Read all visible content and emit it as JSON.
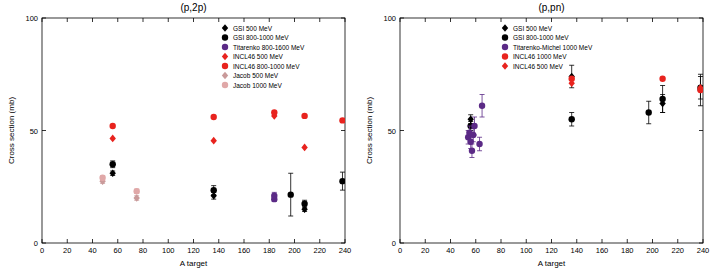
{
  "chart_data": [
    {
      "type": "scatter",
      "title": "(p,2p)",
      "x_label": "A target",
      "y_label": "Cross section (mb)",
      "xlim": [
        0,
        240
      ],
      "ylim": [
        0,
        100
      ],
      "xticks": [
        0,
        20,
        40,
        60,
        80,
        100,
        120,
        140,
        160,
        180,
        200,
        220,
        240
      ],
      "yticks": [
        0,
        50,
        100
      ],
      "grid": false,
      "legend": "upper right",
      "series": [
        {
          "name": "GSI 500 MeV",
          "color": "#000000",
          "marker": "diamond",
          "x": [
            56,
            136,
            208
          ],
          "values": [
            31,
            21,
            15
          ],
          "errors": [
            1,
            1.5,
            1
          ]
        },
        {
          "name": "GSI 800-1000 MeV",
          "color": "#000000",
          "marker": "circle",
          "x": [
            56,
            136,
            197,
            208,
            238
          ],
          "values": [
            35,
            23.5,
            21.5,
            17.5,
            27.5
          ],
          "errors": [
            1.5,
            2,
            9.5,
            1.5,
            4
          ]
        },
        {
          "name": "Titarenko 800-1600 MeV",
          "color": "#5b2a86",
          "marker": "circle",
          "x": [
            184,
            184
          ],
          "values": [
            19.5,
            21
          ],
          "errors": [
            1,
            1.5
          ]
        },
        {
          "name": "INCL46 500 MeV",
          "color": "#e8231e",
          "marker": "diamond",
          "x": [
            56,
            136,
            184,
            208
          ],
          "values": [
            46.5,
            45.5,
            56.5,
            42.5
          ],
          "errors": [
            null,
            null,
            null,
            null
          ]
        },
        {
          "name": "INCL46 800-1000 MeV",
          "color": "#e8231e",
          "marker": "circle",
          "x": [
            56,
            136,
            184,
            208,
            238
          ],
          "values": [
            52,
            56,
            58,
            56.5,
            54.5
          ],
          "errors": [
            null,
            null,
            null,
            null,
            null
          ]
        },
        {
          "name": "Jacob 500 MeV",
          "color": "#c99a9a",
          "marker": "diamond",
          "x": [
            48,
            75
          ],
          "values": [
            27.5,
            20
          ],
          "errors": [
            1,
            1
          ]
        },
        {
          "name": "Jacob 1000 MeV",
          "color": "#e0a8a8",
          "marker": "circle",
          "x": [
            48,
            75
          ],
          "values": [
            29,
            23
          ],
          "errors": [
            1,
            1
          ]
        }
      ]
    },
    {
      "type": "scatter",
      "title": "(p,pn)",
      "x_label": "A target",
      "y_label": "Cross section (mb)",
      "xlim": [
        0,
        240
      ],
      "ylim": [
        0,
        100
      ],
      "xticks": [
        0,
        20,
        40,
        60,
        80,
        100,
        120,
        140,
        160,
        180,
        200,
        220,
        240
      ],
      "yticks": [
        0,
        50,
        100
      ],
      "grid": false,
      "legend": "upper left",
      "series": [
        {
          "name": "GSI 500 MeV",
          "color": "#000000",
          "marker": "diamond",
          "x": [
            56,
            136,
            208,
            238
          ],
          "values": [
            55,
            74,
            62,
            68
          ],
          "errors": [
            2,
            5,
            4,
            7
          ]
        },
        {
          "name": "GSI 800-1000 MeV",
          "color": "#000000",
          "marker": "circle",
          "x": [
            56,
            136,
            197,
            208,
            238
          ],
          "values": [
            52,
            55,
            58,
            64,
            69
          ],
          "errors": [
            2,
            3,
            5,
            6,
            5
          ]
        },
        {
          "name": "Titarenko-Michel 1000 MeV",
          "color": "#5b2a86",
          "marker": "circle",
          "x": [
            54,
            55,
            56,
            57,
            58,
            59,
            63,
            65
          ],
          "values": [
            47,
            49,
            45,
            41,
            48,
            52,
            44,
            61
          ],
          "errors": [
            3,
            3,
            3,
            3,
            3,
            4,
            3,
            5
          ]
        },
        {
          "name": "INCL46 1000 MeV",
          "color": "#e8231e",
          "marker": "circle",
          "x": [
            136,
            208,
            238
          ],
          "values": [
            73,
            73,
            68
          ],
          "errors": [
            null,
            null,
            null
          ]
        },
        {
          "name": "INCL46 500 MeV",
          "color": "#e8231e",
          "marker": "diamond",
          "x": [
            136,
            238
          ],
          "values": [
            71,
            69
          ],
          "errors": [
            null,
            null
          ]
        }
      ]
    }
  ]
}
